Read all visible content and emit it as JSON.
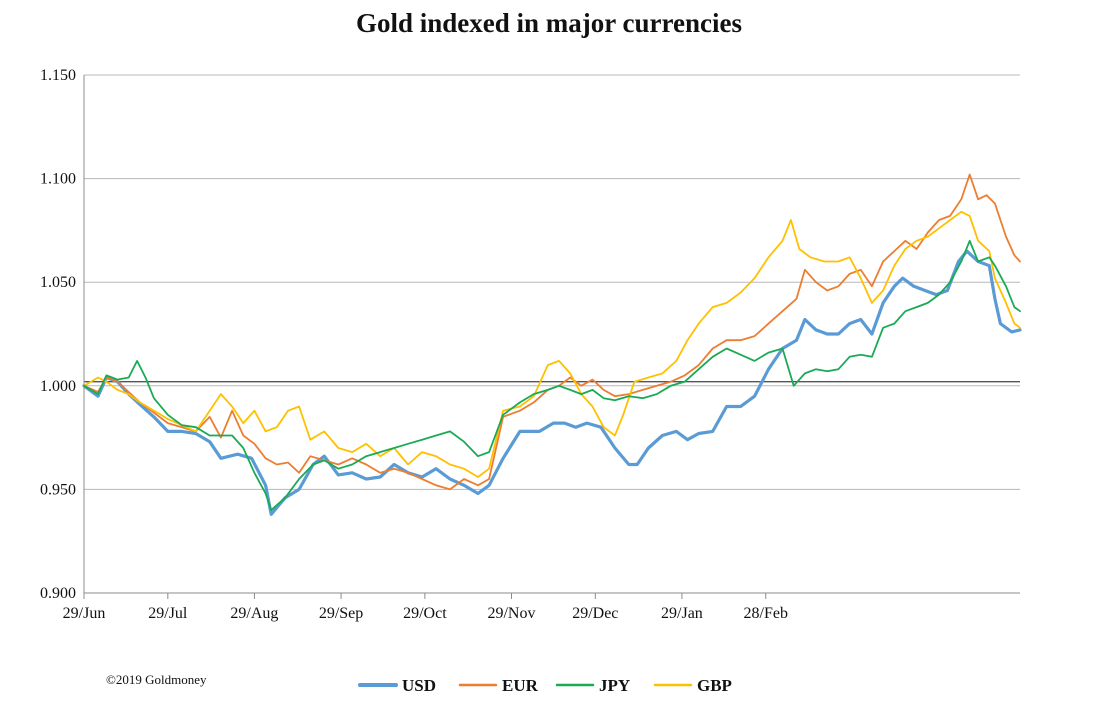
{
  "chart_data": {
    "type": "line",
    "title": "Gold indexed in major currencies",
    "xlabel": "",
    "ylabel": "",
    "ylim": [
      0.9,
      1.15
    ],
    "y_ticks": [
      "0.900",
      "0.950",
      "1.000",
      "1.050",
      "1.100",
      "1.150"
    ],
    "x_ticks": [
      "29/Jun",
      "29/Jul",
      "29/Aug",
      "29/Sep",
      "29/Oct",
      "29/Nov",
      "29/Dec",
      "29/Jan",
      "28/Feb"
    ],
    "reference_line": 1.002,
    "grid": true,
    "legend": "bottom",
    "copyright": "©2019 Goldmoney",
    "series": [
      {
        "name": "USD",
        "color": "#5b9bd5",
        "values": [
          [
            0,
            1.0
          ],
          [
            5,
            0.995
          ],
          [
            8,
            1.004
          ],
          [
            12,
            1.002
          ],
          [
            16,
            0.996
          ],
          [
            20,
            0.991
          ],
          [
            25,
            0.985
          ],
          [
            30,
            0.978
          ],
          [
            35,
            0.978
          ],
          [
            40,
            0.977
          ],
          [
            45,
            0.973
          ],
          [
            49,
            0.965
          ],
          [
            55,
            0.967
          ],
          [
            60,
            0.965
          ],
          [
            65,
            0.952
          ],
          [
            67,
            0.938
          ],
          [
            72,
            0.946
          ],
          [
            77,
            0.95
          ],
          [
            82,
            0.962
          ],
          [
            86,
            0.966
          ],
          [
            91,
            0.957
          ],
          [
            96,
            0.958
          ],
          [
            101,
            0.955
          ],
          [
            106,
            0.956
          ],
          [
            111,
            0.962
          ],
          [
            116,
            0.958
          ],
          [
            121,
            0.956
          ],
          [
            126,
            0.96
          ],
          [
            131,
            0.955
          ],
          [
            136,
            0.952
          ],
          [
            141,
            0.948
          ],
          [
            145,
            0.952
          ],
          [
            150,
            0.965
          ],
          [
            156,
            0.978
          ],
          [
            163,
            0.978
          ],
          [
            168,
            0.982
          ],
          [
            172,
            0.982
          ],
          [
            176,
            0.98
          ],
          [
            180,
            0.982
          ],
          [
            185,
            0.98
          ],
          [
            190,
            0.97
          ],
          [
            195,
            0.962
          ],
          [
            198,
            0.962
          ],
          [
            202,
            0.97
          ],
          [
            207,
            0.976
          ],
          [
            212,
            0.978
          ],
          [
            216,
            0.974
          ],
          [
            220,
            0.977
          ],
          [
            225,
            0.978
          ],
          [
            230,
            0.99
          ],
          [
            235,
            0.99
          ],
          [
            240,
            0.995
          ],
          [
            245,
            1.008
          ],
          [
            250,
            1.018
          ],
          [
            255,
            1.022
          ],
          [
            258,
            1.032
          ],
          [
            262,
            1.027
          ],
          [
            266,
            1.025
          ],
          [
            270,
            1.025
          ],
          [
            274,
            1.03
          ],
          [
            278,
            1.032
          ],
          [
            282,
            1.025
          ],
          [
            286,
            1.04
          ],
          [
            290,
            1.048
          ],
          [
            293,
            1.052
          ],
          [
            297,
            1.048
          ],
          [
            301,
            1.046
          ],
          [
            305,
            1.044
          ],
          [
            309,
            1.046
          ],
          [
            313,
            1.06
          ],
          [
            316,
            1.065
          ],
          [
            320,
            1.06
          ],
          [
            324,
            1.058
          ],
          [
            326,
            1.042
          ],
          [
            328,
            1.03
          ],
          [
            332,
            1.026
          ],
          [
            335,
            1.027
          ]
        ]
      },
      {
        "name": "EUR",
        "color": "#ed7d31",
        "values": [
          [
            0,
            1.0
          ],
          [
            5,
            0.997
          ],
          [
            8,
            1.004
          ],
          [
            12,
            1.002
          ],
          [
            16,
            0.997
          ],
          [
            20,
            0.992
          ],
          [
            25,
            0.987
          ],
          [
            30,
            0.982
          ],
          [
            35,
            0.98
          ],
          [
            40,
            0.978
          ],
          [
            45,
            0.985
          ],
          [
            49,
            0.975
          ],
          [
            53,
            0.988
          ],
          [
            57,
            0.976
          ],
          [
            61,
            0.972
          ],
          [
            65,
            0.965
          ],
          [
            69,
            0.962
          ],
          [
            73,
            0.963
          ],
          [
            77,
            0.958
          ],
          [
            81,
            0.966
          ],
          [
            86,
            0.964
          ],
          [
            91,
            0.962
          ],
          [
            96,
            0.965
          ],
          [
            101,
            0.962
          ],
          [
            106,
            0.958
          ],
          [
            111,
            0.96
          ],
          [
            116,
            0.958
          ],
          [
            121,
            0.955
          ],
          [
            126,
            0.952
          ],
          [
            131,
            0.95
          ],
          [
            136,
            0.955
          ],
          [
            141,
            0.952
          ],
          [
            145,
            0.955
          ],
          [
            150,
            0.985
          ],
          [
            156,
            0.988
          ],
          [
            161,
            0.992
          ],
          [
            166,
            0.998
          ],
          [
            170,
            1.0
          ],
          [
            174,
            1.004
          ],
          [
            178,
            1.0
          ],
          [
            182,
            1.003
          ],
          [
            186,
            0.998
          ],
          [
            190,
            0.995
          ],
          [
            195,
            0.996
          ],
          [
            200,
            0.998
          ],
          [
            205,
            1.0
          ],
          [
            210,
            1.002
          ],
          [
            215,
            1.005
          ],
          [
            220,
            1.01
          ],
          [
            225,
            1.018
          ],
          [
            230,
            1.022
          ],
          [
            235,
            1.022
          ],
          [
            240,
            1.024
          ],
          [
            245,
            1.03
          ],
          [
            250,
            1.036
          ],
          [
            255,
            1.042
          ],
          [
            258,
            1.056
          ],
          [
            262,
            1.05
          ],
          [
            266,
            1.046
          ],
          [
            270,
            1.048
          ],
          [
            274,
            1.054
          ],
          [
            278,
            1.056
          ],
          [
            282,
            1.048
          ],
          [
            286,
            1.06
          ],
          [
            290,
            1.065
          ],
          [
            294,
            1.07
          ],
          [
            298,
            1.066
          ],
          [
            302,
            1.074
          ],
          [
            306,
            1.08
          ],
          [
            310,
            1.082
          ],
          [
            314,
            1.09
          ],
          [
            317,
            1.102
          ],
          [
            320,
            1.09
          ],
          [
            323,
            1.092
          ],
          [
            326,
            1.088
          ],
          [
            330,
            1.072
          ],
          [
            333,
            1.063
          ],
          [
            335,
            1.06
          ]
        ]
      },
      {
        "name": "JPY",
        "color": "#1aaa55",
        "values": [
          [
            0,
            1.0
          ],
          [
            5,
            0.996
          ],
          [
            8,
            1.005
          ],
          [
            12,
            1.003
          ],
          [
            16,
            1.004
          ],
          [
            19,
            1.012
          ],
          [
            22,
            1.004
          ],
          [
            25,
            0.994
          ],
          [
            30,
            0.986
          ],
          [
            35,
            0.981
          ],
          [
            40,
            0.98
          ],
          [
            45,
            0.976
          ],
          [
            49,
            0.976
          ],
          [
            53,
            0.976
          ],
          [
            57,
            0.97
          ],
          [
            61,
            0.958
          ],
          [
            65,
            0.948
          ],
          [
            67,
            0.94
          ],
          [
            72,
            0.946
          ],
          [
            77,
            0.955
          ],
          [
            82,
            0.962
          ],
          [
            86,
            0.964
          ],
          [
            91,
            0.96
          ],
          [
            96,
            0.962
          ],
          [
            101,
            0.966
          ],
          [
            106,
            0.968
          ],
          [
            111,
            0.97
          ],
          [
            116,
            0.972
          ],
          [
            121,
            0.974
          ],
          [
            126,
            0.976
          ],
          [
            131,
            0.978
          ],
          [
            136,
            0.973
          ],
          [
            141,
            0.966
          ],
          [
            145,
            0.968
          ],
          [
            150,
            0.986
          ],
          [
            156,
            0.992
          ],
          [
            161,
            0.996
          ],
          [
            166,
            0.998
          ],
          [
            170,
            1.0
          ],
          [
            174,
            0.998
          ],
          [
            178,
            0.996
          ],
          [
            182,
            0.998
          ],
          [
            186,
            0.994
          ],
          [
            190,
            0.993
          ],
          [
            195,
            0.995
          ],
          [
            200,
            0.994
          ],
          [
            205,
            0.996
          ],
          [
            210,
            1.0
          ],
          [
            215,
            1.002
          ],
          [
            220,
            1.008
          ],
          [
            225,
            1.014
          ],
          [
            230,
            1.018
          ],
          [
            235,
            1.015
          ],
          [
            240,
            1.012
          ],
          [
            245,
            1.016
          ],
          [
            250,
            1.018
          ],
          [
            254,
            1.0
          ],
          [
            258,
            1.006
          ],
          [
            262,
            1.008
          ],
          [
            266,
            1.007
          ],
          [
            270,
            1.008
          ],
          [
            274,
            1.014
          ],
          [
            278,
            1.015
          ],
          [
            282,
            1.014
          ],
          [
            286,
            1.028
          ],
          [
            290,
            1.03
          ],
          [
            294,
            1.036
          ],
          [
            298,
            1.038
          ],
          [
            302,
            1.04
          ],
          [
            306,
            1.044
          ],
          [
            310,
            1.05
          ],
          [
            314,
            1.06
          ],
          [
            317,
            1.07
          ],
          [
            320,
            1.06
          ],
          [
            324,
            1.062
          ],
          [
            326,
            1.058
          ],
          [
            330,
            1.048
          ],
          [
            333,
            1.038
          ],
          [
            335,
            1.036
          ]
        ]
      },
      {
        "name": "GBP",
        "color": "#ffc000",
        "values": [
          [
            0,
            1.0
          ],
          [
            5,
            1.004
          ],
          [
            8,
            1.002
          ],
          [
            12,
            0.998
          ],
          [
            16,
            0.996
          ],
          [
            20,
            0.992
          ],
          [
            25,
            0.988
          ],
          [
            30,
            0.984
          ],
          [
            35,
            0.981
          ],
          [
            40,
            0.978
          ],
          [
            45,
            0.988
          ],
          [
            49,
            0.996
          ],
          [
            53,
            0.99
          ],
          [
            57,
            0.982
          ],
          [
            61,
            0.988
          ],
          [
            65,
            0.978
          ],
          [
            69,
            0.98
          ],
          [
            73,
            0.988
          ],
          [
            77,
            0.99
          ],
          [
            81,
            0.974
          ],
          [
            86,
            0.978
          ],
          [
            91,
            0.97
          ],
          [
            96,
            0.968
          ],
          [
            101,
            0.972
          ],
          [
            106,
            0.966
          ],
          [
            111,
            0.97
          ],
          [
            116,
            0.962
          ],
          [
            121,
            0.968
          ],
          [
            126,
            0.966
          ],
          [
            131,
            0.962
          ],
          [
            136,
            0.96
          ],
          [
            141,
            0.956
          ],
          [
            145,
            0.96
          ],
          [
            150,
            0.988
          ],
          [
            156,
            0.99
          ],
          [
            161,
            0.995
          ],
          [
            166,
            1.01
          ],
          [
            170,
            1.012
          ],
          [
            174,
            1.006
          ],
          [
            178,
            0.996
          ],
          [
            182,
            0.99
          ],
          [
            186,
            0.98
          ],
          [
            190,
            0.976
          ],
          [
            193,
            0.986
          ],
          [
            197,
            1.002
          ],
          [
            202,
            1.004
          ],
          [
            207,
            1.006
          ],
          [
            212,
            1.012
          ],
          [
            216,
            1.022
          ],
          [
            220,
            1.03
          ],
          [
            225,
            1.038
          ],
          [
            230,
            1.04
          ],
          [
            235,
            1.045
          ],
          [
            240,
            1.052
          ],
          [
            245,
            1.062
          ],
          [
            250,
            1.07
          ],
          [
            253,
            1.08
          ],
          [
            256,
            1.066
          ],
          [
            260,
            1.062
          ],
          [
            265,
            1.06
          ],
          [
            270,
            1.06
          ],
          [
            274,
            1.062
          ],
          [
            278,
            1.052
          ],
          [
            282,
            1.04
          ],
          [
            286,
            1.046
          ],
          [
            290,
            1.058
          ],
          [
            294,
            1.066
          ],
          [
            298,
            1.07
          ],
          [
            302,
            1.072
          ],
          [
            306,
            1.076
          ],
          [
            310,
            1.08
          ],
          [
            314,
            1.084
          ],
          [
            317,
            1.082
          ],
          [
            320,
            1.07
          ],
          [
            324,
            1.065
          ],
          [
            326,
            1.052
          ],
          [
            330,
            1.04
          ],
          [
            333,
            1.03
          ],
          [
            335,
            1.028
          ]
        ]
      }
    ]
  }
}
